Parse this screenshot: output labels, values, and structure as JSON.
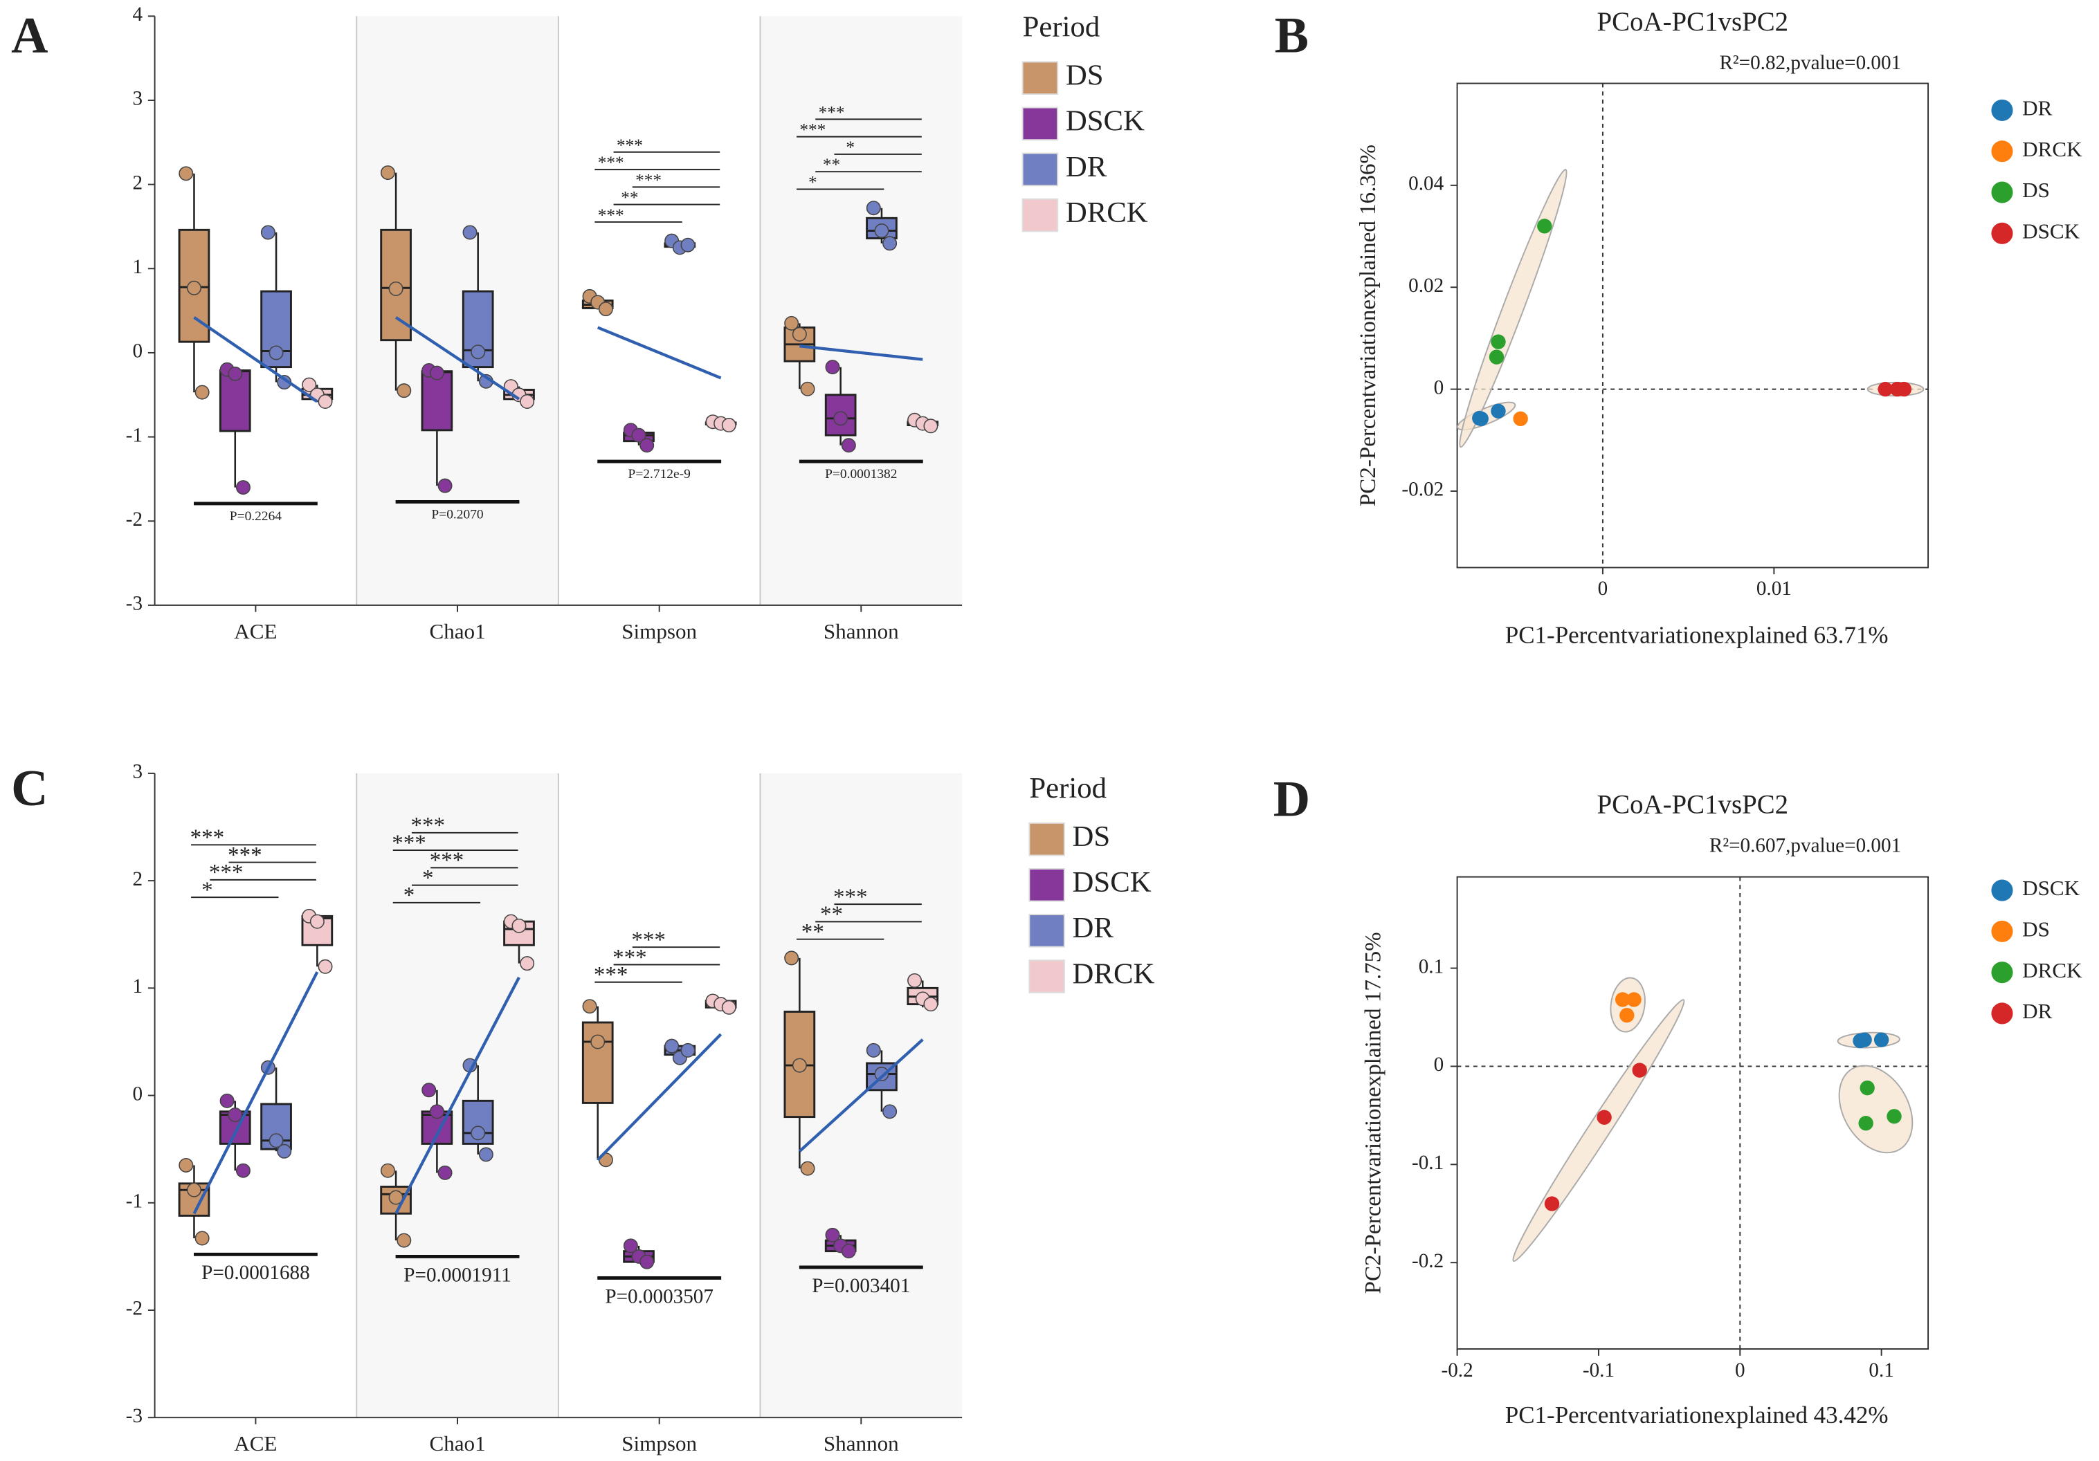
{
  "chart_data": [
    {
      "type": "box",
      "panel": "A",
      "legend_title": "Period",
      "categories": [
        "ACE",
        "Chao1",
        "Simpson",
        "Shannon"
      ],
      "ylim": [
        -3,
        4
      ],
      "yticks": [
        -3,
        -2,
        -1,
        0,
        1,
        2,
        3,
        4
      ],
      "series": [
        {
          "name": "DS",
          "color": "#c8956a",
          "boxes": [
            {
              "min": -0.47,
              "q1": 0.13,
              "median": 0.78,
              "q3": 1.46,
              "max": 2.13,
              "points": [
                2.13,
                0.77,
                -0.47
              ]
            },
            {
              "min": -0.45,
              "q1": 0.15,
              "median": 0.77,
              "q3": 1.46,
              "max": 2.14,
              "points": [
                2.14,
                0.76,
                -0.45
              ]
            },
            {
              "min": 0.52,
              "q1": 0.53,
              "median": 0.57,
              "q3": 0.62,
              "max": 0.67,
              "points": [
                0.67,
                0.6,
                0.52
              ]
            },
            {
              "min": -0.43,
              "q1": -0.1,
              "median": 0.1,
              "q3": 0.3,
              "max": 0.35,
              "points": [
                0.35,
                0.22,
                -0.43
              ]
            }
          ]
        },
        {
          "name": "DSCK",
          "color": "#86379a",
          "boxes": [
            {
              "min": -1.6,
              "q1": -0.93,
              "median": -0.22,
              "q3": -0.21,
              "max": -0.2,
              "points": [
                -0.2,
                -0.25,
                -1.6
              ]
            },
            {
              "min": -1.58,
              "q1": -0.92,
              "median": -0.23,
              "q3": -0.22,
              "max": -0.21,
              "points": [
                -0.21,
                -0.24,
                -1.58
              ]
            },
            {
              "min": -1.1,
              "q1": -1.05,
              "median": -0.98,
              "q3": -0.95,
              "max": -0.92,
              "points": [
                -0.92,
                -0.98,
                -1.1
              ]
            },
            {
              "min": -1.1,
              "q1": -0.98,
              "median": -0.78,
              "q3": -0.5,
              "max": -0.17,
              "points": [
                -0.17,
                -0.78,
                -1.1
              ]
            }
          ]
        },
        {
          "name": "DR",
          "color": "#6f7fc2",
          "boxes": [
            {
              "min": -0.35,
              "q1": -0.17,
              "median": 0.02,
              "q3": 0.73,
              "max": 1.43,
              "points": [
                1.43,
                0.0,
                -0.35
              ]
            },
            {
              "min": -0.34,
              "q1": -0.17,
              "median": 0.03,
              "q3": 0.73,
              "max": 1.43,
              "points": [
                1.43,
                0.01,
                -0.34
              ]
            },
            {
              "min": 1.25,
              "q1": 1.26,
              "median": 1.28,
              "q3": 1.3,
              "max": 1.33,
              "points": [
                1.33,
                1.25,
                1.28
              ]
            },
            {
              "min": 1.3,
              "q1": 1.36,
              "median": 1.45,
              "q3": 1.6,
              "max": 1.72,
              "points": [
                1.72,
                1.45,
                1.3
              ]
            }
          ]
        },
        {
          "name": "DRCK",
          "color": "#f1c9cd",
          "boxes": [
            {
              "min": -0.58,
              "q1": -0.55,
              "median": -0.5,
              "q3": -0.43,
              "max": -0.38,
              "points": [
                -0.38,
                -0.5,
                -0.58
              ]
            },
            {
              "min": -0.58,
              "q1": -0.55,
              "median": -0.5,
              "q3": -0.44,
              "max": -0.4,
              "points": [
                -0.4,
                -0.5,
                -0.58
              ]
            },
            {
              "min": -0.86,
              "q1": -0.85,
              "median": -0.84,
              "q3": -0.83,
              "max": -0.82,
              "points": [
                -0.82,
                -0.84,
                -0.86
              ]
            },
            {
              "min": -0.87,
              "q1": -0.86,
              "median": -0.84,
              "q3": -0.82,
              "max": -0.8,
              "points": [
                -0.8,
                -0.84,
                -0.87
              ]
            }
          ]
        }
      ],
      "trends": [
        [
          0.42,
          -0.58
        ],
        [
          0.42,
          -0.55
        ],
        [
          0.3,
          -0.3
        ],
        [
          0.08,
          -0.08
        ]
      ],
      "significance": [
        [],
        [],
        [
          "***",
          "**",
          "***",
          "***",
          "***"
        ],
        [
          "*",
          "**",
          "*",
          "***",
          "***"
        ]
      ],
      "p_values": [
        "P=0.2264",
        "P=0.2070",
        "P=2.712e-9",
        "P=0.0001382"
      ]
    },
    {
      "type": "scatter",
      "panel": "B",
      "title": "PCoA-PC1vsPC2",
      "annotation": "R²=0.82,pvalue=0.001",
      "xlabel": "PC1-Percentvariationexplained 63.71%",
      "ylabel": "PC2-Percentvariationexplained 16.36%",
      "xlim": [
        -0.0085,
        0.019
      ],
      "ylim": [
        -0.035,
        0.06
      ],
      "xticks": [
        0,
        0.01
      ],
      "yticks": [
        -0.02,
        0,
        0.02,
        0.04
      ],
      "series": [
        {
          "name": "DR",
          "color": "#1f77b4",
          "x": [
            -0.0072,
            -0.0061,
            -0.0071
          ],
          "y": [
            -0.0057,
            -0.0043,
            -0.0058
          ]
        },
        {
          "name": "DRCK",
          "color": "#ff7f0e",
          "x": [
            -0.0048
          ],
          "y": [
            -0.0058
          ]
        },
        {
          "name": "DS",
          "color": "#2ca02c",
          "x": [
            -0.0034,
            -0.0061,
            -0.0062
          ],
          "y": [
            0.032,
            0.0093,
            0.0063
          ]
        },
        {
          "name": "DSCK",
          "color": "#d62728",
          "x": [
            0.0165,
            0.0172,
            0.0176
          ],
          "y": [
            0,
            0,
            0
          ]
        }
      ]
    },
    {
      "type": "box",
      "panel": "C",
      "legend_title": "Period",
      "categories": [
        "ACE",
        "Chao1",
        "Simpson",
        "Shannon"
      ],
      "ylim": [
        -3,
        3
      ],
      "yticks": [
        -3,
        -2,
        -1,
        0,
        1,
        2,
        3
      ],
      "series": [
        {
          "name": "DS",
          "color": "#c8956a",
          "boxes": [
            {
              "min": -1.33,
              "q1": -1.12,
              "median": -0.88,
              "q3": -0.82,
              "max": -0.65,
              "points": [
                -0.65,
                -0.88,
                -1.33
              ]
            },
            {
              "min": -1.35,
              "q1": -1.1,
              "median": -0.92,
              "q3": -0.85,
              "max": -0.7,
              "points": [
                -0.7,
                -0.95,
                -1.35
              ]
            },
            {
              "min": -0.6,
              "q1": -0.07,
              "median": 0.5,
              "q3": 0.68,
              "max": 0.83,
              "points": [
                0.83,
                0.5,
                -0.6
              ]
            },
            {
              "min": -0.68,
              "q1": -0.2,
              "median": 0.28,
              "q3": 0.78,
              "max": 1.28,
              "points": [
                1.28,
                0.28,
                -0.68
              ]
            }
          ]
        },
        {
          "name": "DSCK",
          "color": "#86379a",
          "boxes": [
            {
              "min": -0.7,
              "q1": -0.45,
              "median": -0.18,
              "q3": -0.15,
              "max": -0.05,
              "points": [
                -0.05,
                -0.18,
                -0.7
              ]
            },
            {
              "min": -0.72,
              "q1": -0.45,
              "median": -0.18,
              "q3": -0.15,
              "max": 0.05,
              "points": [
                0.05,
                -0.15,
                -0.72
              ]
            },
            {
              "min": -1.55,
              "q1": -1.55,
              "median": -1.5,
              "q3": -1.45,
              "max": -1.4,
              "points": [
                -1.4,
                -1.5,
                -1.55
              ]
            },
            {
              "min": -1.45,
              "q1": -1.45,
              "median": -1.4,
              "q3": -1.35,
              "max": -1.3,
              "points": [
                -1.3,
                -1.4,
                -1.45
              ]
            }
          ]
        },
        {
          "name": "DR",
          "color": "#6f7fc2",
          "boxes": [
            {
              "min": -0.52,
              "q1": -0.5,
              "median": -0.42,
              "q3": -0.08,
              "max": 0.26,
              "points": [
                0.26,
                -0.42,
                -0.52
              ]
            },
            {
              "min": -0.55,
              "q1": -0.45,
              "median": -0.35,
              "q3": -0.05,
              "max": 0.28,
              "points": [
                0.28,
                -0.35,
                -0.55
              ]
            },
            {
              "min": 0.35,
              "q1": 0.38,
              "median": 0.42,
              "q3": 0.46,
              "max": 0.46,
              "points": [
                0.46,
                0.35,
                0.42
              ]
            },
            {
              "min": -0.15,
              "q1": 0.05,
              "median": 0.2,
              "q3": 0.3,
              "max": 0.42,
              "points": [
                0.42,
                0.2,
                -0.15
              ]
            }
          ]
        },
        {
          "name": "DRCK",
          "color": "#f1c9cd",
          "boxes": [
            {
              "min": 1.2,
              "q1": 1.4,
              "median": 1.65,
              "q3": 1.67,
              "max": 1.67,
              "points": [
                1.67,
                1.62,
                1.2
              ]
            },
            {
              "min": 1.23,
              "q1": 1.4,
              "median": 1.55,
              "q3": 1.62,
              "max": 1.62,
              "points": [
                1.62,
                1.58,
                1.23
              ]
            },
            {
              "min": 0.82,
              "q1": 0.82,
              "median": 0.85,
              "q3": 0.88,
              "max": 0.88,
              "points": [
                0.88,
                0.85,
                0.82
              ]
            },
            {
              "min": 0.82,
              "q1": 0.85,
              "median": 0.92,
              "q3": 1.0,
              "max": 1.07,
              "points": [
                1.07,
                0.9,
                0.85
              ]
            }
          ]
        }
      ],
      "trends": [
        [
          -1.1,
          1.15
        ],
        [
          -1.1,
          1.1
        ],
        [
          -0.6,
          0.57
        ],
        [
          -0.52,
          0.52
        ]
      ],
      "significance": [
        [
          "*",
          "***",
          "***",
          "***"
        ],
        [
          "*",
          "*",
          "***",
          "***",
          "***"
        ],
        [
          "***",
          "***",
          "***"
        ],
        [
          "**",
          "**",
          "***"
        ]
      ],
      "p_values": [
        "P=0.0001688",
        "P=0.0001911",
        "P=0.0003507",
        "P=0.003401"
      ]
    },
    {
      "type": "scatter",
      "panel": "D",
      "title": "PCoA-PC1vsPC2",
      "annotation": "R²=0.607,pvalue=0.001",
      "xlabel": "PC1-Percentvariationexplained 43.42%",
      "ylabel": "PC2-Percentvariationexplained 17.75%",
      "xlim": [
        -0.2,
        0.133
      ],
      "ylim": [
        -0.288,
        0.193
      ],
      "xticks": [
        -0.2,
        -0.1,
        0,
        0.1
      ],
      "yticks": [
        -0.2,
        -0.1,
        0,
        0.1
      ],
      "series": [
        {
          "name": "DSCK",
          "color": "#1f77b4",
          "x": [
            0.085,
            0.1,
            0.088
          ],
          "y": [
            0.026,
            0.027,
            0.027
          ]
        },
        {
          "name": "DS",
          "color": "#ff7f0e",
          "x": [
            -0.083,
            -0.075,
            -0.08
          ],
          "y": [
            0.068,
            0.068,
            0.052
          ]
        },
        {
          "name": "DRCK",
          "color": "#2ca02c",
          "x": [
            0.09,
            0.089,
            0.109
          ],
          "y": [
            -0.022,
            -0.058,
            -0.051
          ]
        },
        {
          "name": "DR",
          "color": "#d62728",
          "x": [
            -0.071,
            -0.096,
            -0.133
          ],
          "y": [
            -0.004,
            -0.052,
            -0.14
          ]
        }
      ]
    }
  ]
}
